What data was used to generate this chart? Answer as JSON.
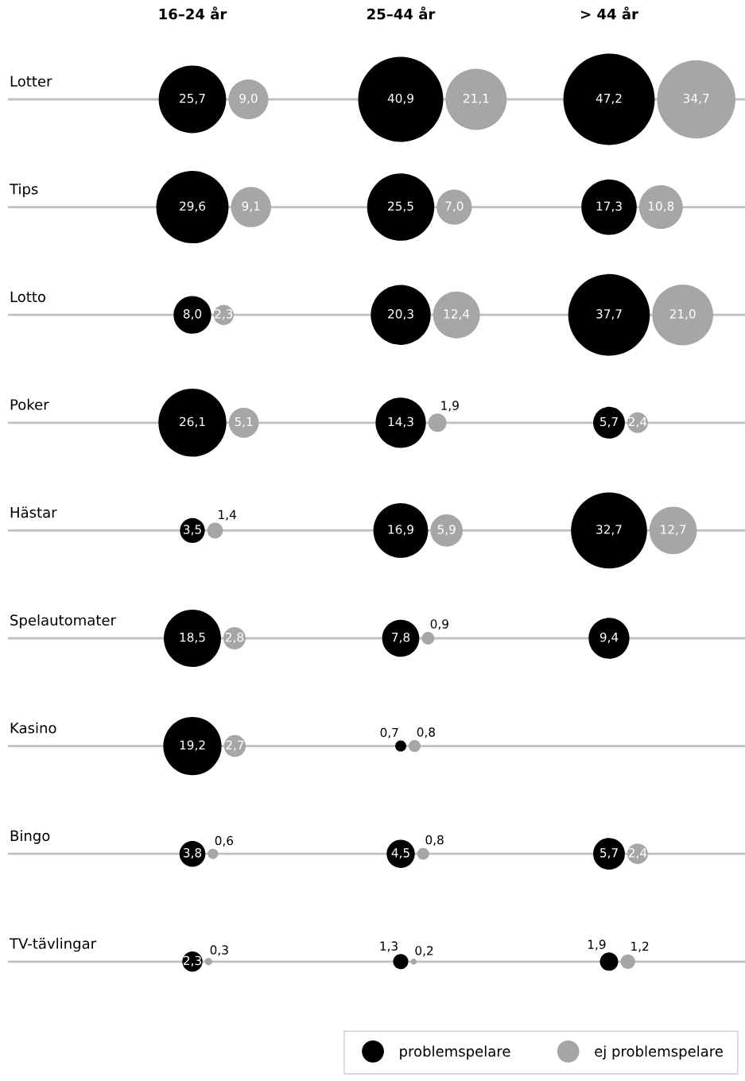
{
  "chart_data": {
    "type": "other",
    "categories": [
      "Lotter",
      "Tips",
      "Lotto",
      "Poker",
      "Hästar",
      "Spelautomater",
      "Kasino",
      "Bingo",
      "TV-tävlingar"
    ],
    "annotations": [
      "16–24 år",
      "25–44 år",
      "> 44 år"
    ],
    "legend": "bottom right",
    "series": [
      {
        "name": "problemspelare",
        "color": "#000000",
        "values": [
          25.7,
          29.6,
          8.0,
          26.1,
          3.5,
          18.5,
          19.2,
          3.8,
          2.3
        ],
        "value_labels": [
          "25,7",
          "29,6",
          "8,0",
          "26,1",
          "3,5",
          "18,5",
          "19,2",
          "3,8",
          "2,3"
        ]
      },
      {
        "name": "ej problemspelare",
        "color": "#a6a6a6",
        "values": [
          9.0,
          9.1,
          2.3,
          5.1,
          1.4,
          2.8,
          2.7,
          0.6,
          0.3
        ],
        "value_labels": [
          "9,0",
          "9,1",
          "2,3",
          "5,1",
          "1,4",
          "2,8",
          "2,7",
          "0,6",
          "0,3"
        ]
      },
      {
        "color": "#000000",
        "values": [
          40.9,
          25.5,
          20.3,
          14.3,
          16.9,
          7.8,
          0.7,
          4.5,
          1.3
        ],
        "value_labels": [
          "40,9",
          "25,5",
          "20,3",
          "14,3",
          "16,9",
          "7,8",
          "0,7",
          "4,5",
          "1,3"
        ]
      },
      {
        "color": "#a6a6a6",
        "values": [
          21.1,
          7.0,
          12.4,
          1.9,
          5.9,
          0.9,
          0.8,
          0.8,
          0.2
        ],
        "value_labels": [
          "21,1",
          "7,0",
          "12,4",
          "1,9",
          "5,9",
          "0,9",
          "0,8",
          "0,8",
          "0,2"
        ]
      },
      {
        "color": "#000000",
        "values": [
          47.2,
          17.3,
          37.7,
          5.7,
          32.7,
          9.4,
          null,
          5.7,
          1.9
        ],
        "value_labels": [
          "47,2",
          "17,3",
          "37,7",
          "5,7",
          "32,7",
          "9,4",
          null,
          "5,7",
          "1,9"
        ]
      },
      {
        "color": "#a6a6a6",
        "values": [
          34.7,
          10.8,
          21.0,
          2.4,
          12.7,
          null,
          null,
          2.4,
          1.2
        ],
        "value_labels": [
          "34,7",
          "10,8",
          "21,0",
          "2,4",
          "12,7",
          null,
          null,
          "2,4",
          "1,2"
        ]
      }
    ]
  }
}
